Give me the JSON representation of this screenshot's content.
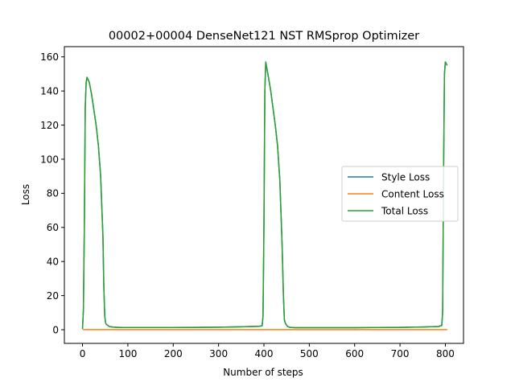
{
  "chart_data": {
    "type": "line",
    "title": "00002+00004 DenseNet121 NST RMSprop Optimizer",
    "xlabel": "Number of steps",
    "ylabel": "Loss",
    "xlim": [
      -40,
      840
    ],
    "ylim": [
      -8,
      166
    ],
    "xticks": [
      0,
      100,
      200,
      300,
      400,
      500,
      600,
      700,
      800
    ],
    "yticks": [
      0,
      20,
      40,
      60,
      80,
      100,
      120,
      140,
      160
    ],
    "grid": false,
    "legend": "center-right",
    "series": [
      {
        "name": "Style Loss",
        "color": "#1f77b4",
        "x": [
          0,
          2,
          4,
          6,
          8,
          10,
          15,
          20,
          25,
          30,
          35,
          40,
          45,
          47,
          49,
          51,
          53,
          56,
          60,
          70,
          80,
          90,
          100,
          150,
          200,
          250,
          300,
          350,
          390,
          396,
          398,
          400,
          402,
          404,
          406,
          410,
          415,
          420,
          425,
          430,
          435,
          440,
          443,
          445,
          447,
          449,
          452,
          456,
          460,
          470,
          480,
          500,
          550,
          600,
          650,
          700,
          750,
          785,
          792,
          794,
          796,
          798,
          800,
          802,
          804
        ],
        "y": [
          0.5,
          12,
          60,
          130,
          145,
          148,
          145,
          138,
          129,
          120,
          108,
          90,
          55,
          25,
          8,
          4,
          3,
          2.5,
          1.8,
          1.5,
          1.4,
          1.3,
          1.3,
          1.3,
          1.3,
          1.4,
          1.5,
          1.7,
          2,
          2.3,
          8,
          60,
          140,
          157,
          154,
          148,
          140,
          130,
          120,
          108,
          88,
          50,
          20,
          6,
          4,
          3,
          2,
          1.5,
          1.3,
          1.2,
          1.2,
          1.2,
          1.2,
          1.2,
          1.3,
          1.4,
          1.6,
          1.9,
          2.5,
          10,
          90,
          150,
          157,
          156,
          155
        ]
      },
      {
        "name": "Content Loss",
        "color": "#ff7f0e",
        "x": [
          0,
          100,
          200,
          300,
          400,
          500,
          600,
          700,
          804
        ],
        "y": [
          0.1,
          0.1,
          0.1,
          0.1,
          0.1,
          0.1,
          0.1,
          0.1,
          0.1
        ]
      },
      {
        "name": "Total Loss",
        "color": "#2ca02c",
        "x": [
          0,
          2,
          4,
          6,
          8,
          10,
          15,
          20,
          25,
          30,
          35,
          40,
          45,
          47,
          49,
          51,
          53,
          56,
          60,
          70,
          80,
          90,
          100,
          150,
          200,
          250,
          300,
          350,
          390,
          396,
          398,
          400,
          402,
          404,
          406,
          410,
          415,
          420,
          425,
          430,
          435,
          440,
          443,
          445,
          447,
          449,
          452,
          456,
          460,
          470,
          480,
          500,
          550,
          600,
          650,
          700,
          750,
          785,
          792,
          794,
          796,
          798,
          800,
          802,
          804
        ],
        "y": [
          0.6,
          12,
          60,
          130,
          145,
          148,
          145,
          138,
          129,
          120,
          108,
          90,
          55,
          25,
          8,
          4,
          3,
          2.5,
          1.8,
          1.5,
          1.4,
          1.3,
          1.3,
          1.3,
          1.3,
          1.4,
          1.5,
          1.7,
          2,
          2.3,
          8,
          60,
          140,
          157,
          154,
          148,
          140,
          130,
          120,
          108,
          88,
          50,
          20,
          6,
          4,
          3,
          2,
          1.5,
          1.3,
          1.2,
          1.2,
          1.2,
          1.2,
          1.2,
          1.3,
          1.4,
          1.6,
          1.9,
          2.5,
          10,
          90,
          150,
          157,
          156,
          155
        ]
      }
    ]
  }
}
